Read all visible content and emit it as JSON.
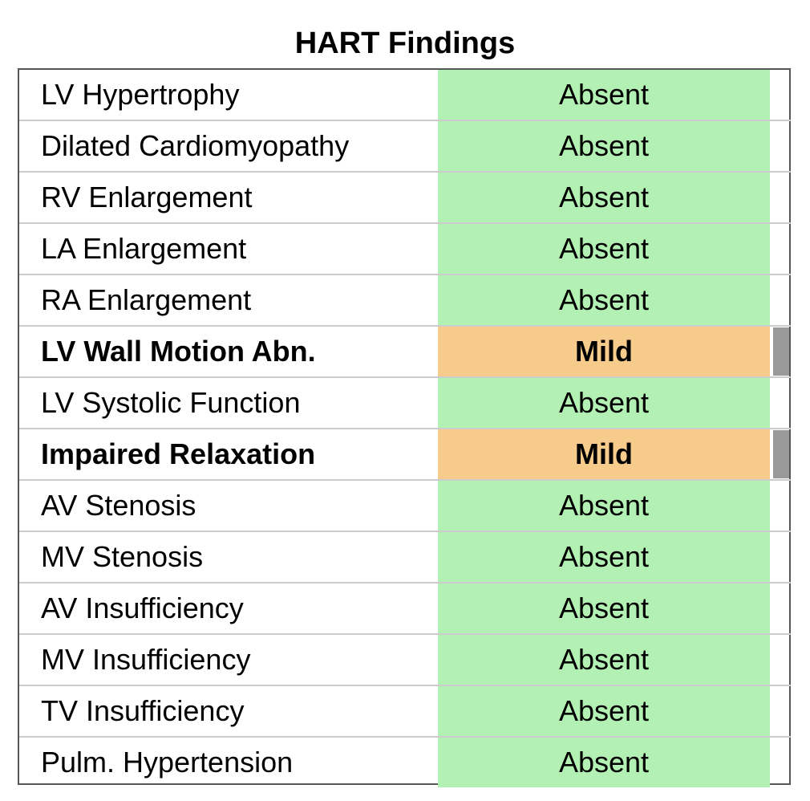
{
  "title": "HART Findings",
  "colors": {
    "absent": "#b3f0b3",
    "mild": "#f7cb8c",
    "indicator": "#999999",
    "border": "#555555",
    "row_divider": "#cccccc"
  },
  "rows": [
    {
      "finding": "LV Hypertrophy",
      "status": "Absent",
      "severity": "absent",
      "bold": false
    },
    {
      "finding": "Dilated Cardiomyopathy",
      "status": "Absent",
      "severity": "absent",
      "bold": false
    },
    {
      "finding": "RV Enlargement",
      "status": "Absent",
      "severity": "absent",
      "bold": false
    },
    {
      "finding": "LA Enlargement",
      "status": "Absent",
      "severity": "absent",
      "bold": false
    },
    {
      "finding": "RA Enlargement",
      "status": "Absent",
      "severity": "absent",
      "bold": false
    },
    {
      "finding": "LV Wall Motion Abn.",
      "status": "Mild",
      "severity": "mild",
      "bold": true
    },
    {
      "finding": "LV Systolic Function",
      "status": "Absent",
      "severity": "absent",
      "bold": false
    },
    {
      "finding": "Impaired Relaxation",
      "status": "Mild",
      "severity": "mild",
      "bold": true
    },
    {
      "finding": "AV Stenosis",
      "status": "Absent",
      "severity": "absent",
      "bold": false
    },
    {
      "finding": "MV Stenosis",
      "status": "Absent",
      "severity": "absent",
      "bold": false
    },
    {
      "finding": "AV Insufficiency",
      "status": "Absent",
      "severity": "absent",
      "bold": false
    },
    {
      "finding": "MV Insufficiency",
      "status": "Absent",
      "severity": "absent",
      "bold": false
    },
    {
      "finding": "TV Insufficiency",
      "status": "Absent",
      "severity": "absent",
      "bold": false
    },
    {
      "finding": "Pulm. Hypertension",
      "status": "Absent",
      "severity": "absent",
      "bold": false
    }
  ]
}
